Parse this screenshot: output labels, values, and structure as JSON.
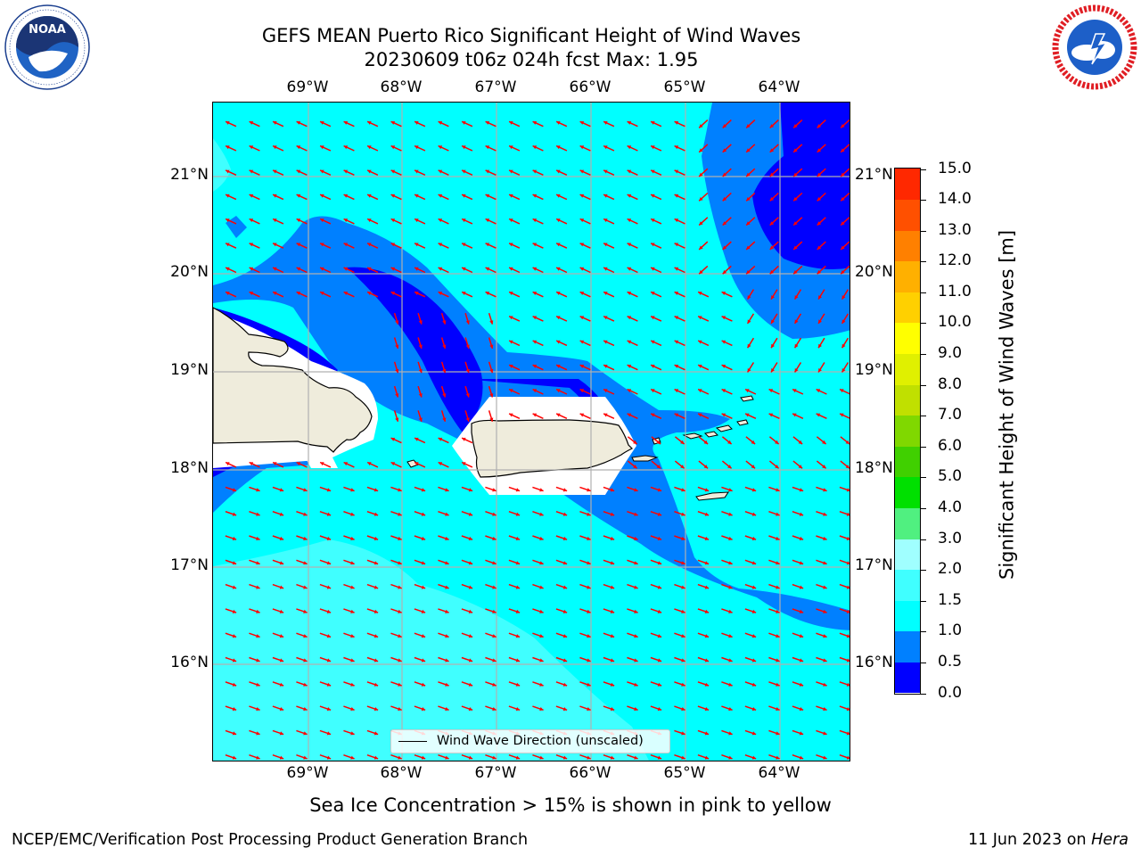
{
  "title": {
    "line1": "GEFS MEAN Puerto Rico Significant Height of Wind Waves",
    "line2": "20230609 t06z 024h fcst   Max: 1.95"
  },
  "logos": {
    "noaa": {
      "text": "NOAA",
      "ring_text": "NATIONAL OCEANIC AND ATMOSPHERIC ADMINISTRATION · U.S. DEPARTMENT OF COMMERCE"
    },
    "nws": {
      "ring_text": "NATIONAL WEATHER SERVICE"
    }
  },
  "map": {
    "lon_ticks": [
      "69°W",
      "68°W",
      "67°W",
      "66°W",
      "65°W",
      "64°W"
    ],
    "lat_ticks": [
      "21°N",
      "20°N",
      "19°N",
      "18°N",
      "17°N",
      "16°N"
    ],
    "legend_label": "Wind Wave Direction (unscaled)",
    "arrow_color": "#ff0000",
    "land_color": "#efecdc",
    "gridlines": true
  },
  "colorbar": {
    "title": "Significant Height of Wind Waves [m]",
    "labels": [
      "0.0",
      "0.5",
      "1.0",
      "1.5",
      "2.0",
      "3.0",
      "4.0",
      "5.0",
      "6.0",
      "7.0",
      "8.0",
      "9.0",
      "10.0",
      "11.0",
      "12.0",
      "13.0",
      "14.0",
      "15.0"
    ],
    "colors": [
      "#0000ff",
      "#0080ff",
      "#00ffff",
      "#40ffff",
      "#a0ffff",
      "#50f080",
      "#00e000",
      "#40d000",
      "#80d800",
      "#c0e000",
      "#e0f000",
      "#ffff00",
      "#ffd000",
      "#ffb000",
      "#ff8000",
      "#ff5000",
      "#ff2800"
    ]
  },
  "footnote": "Sea Ice Concentration > 15% is shown in pink to yellow",
  "credit": "NCEP/EMC/Verification Post Processing Product Generation Branch",
  "date": {
    "prefix": "11 Jun 2023 on ",
    "machine": "Hera"
  }
}
